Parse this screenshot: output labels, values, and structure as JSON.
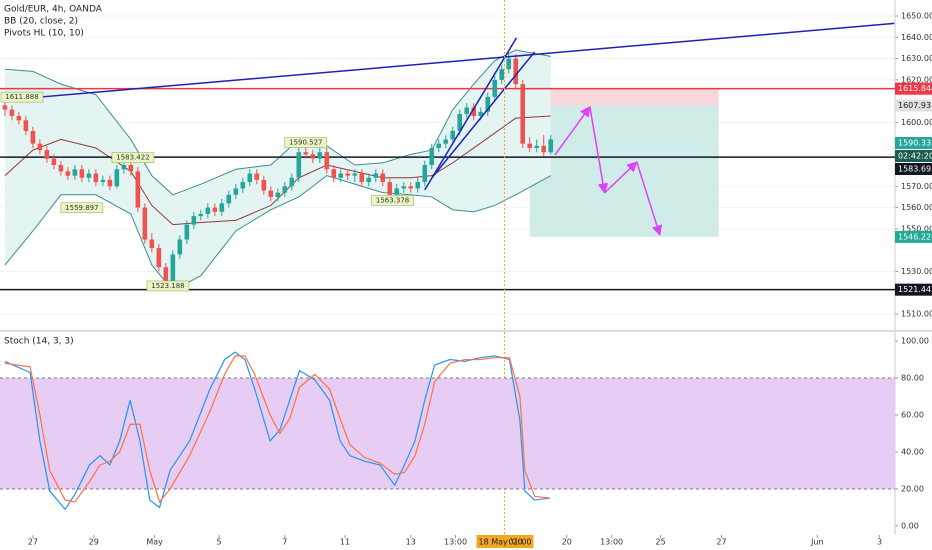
{
  "chart_data": [
    {
      "type": "candlestick",
      "title": "Gold/EUR, 4h, OANDA",
      "legend": [
        "BB (20, close, 2)",
        "Pivots HL (10, 10)"
      ],
      "up_color": "#26a69a",
      "down_color": "#ef5350",
      "candles": [
        [
          1608,
          1611,
          1603,
          1606
        ],
        [
          1606,
          1608,
          1601,
          1603
        ],
        [
          1603,
          1605,
          1599,
          1601
        ],
        [
          1601,
          1603,
          1594,
          1596
        ],
        [
          1596,
          1598,
          1588,
          1590
        ],
        [
          1590,
          1592,
          1585,
          1587
        ],
        [
          1587,
          1589,
          1581,
          1583
        ],
        [
          1583,
          1585,
          1578,
          1580
        ],
        [
          1580,
          1582,
          1575,
          1577
        ],
        [
          1577,
          1579,
          1573,
          1575
        ],
        [
          1575,
          1580,
          1573,
          1578
        ],
        [
          1578,
          1580,
          1572,
          1574
        ],
        [
          1574,
          1578,
          1572,
          1576
        ],
        [
          1576,
          1578,
          1570,
          1572
        ],
        [
          1572,
          1575,
          1570,
          1573
        ],
        [
          1573,
          1575,
          1568,
          1570
        ],
        [
          1570,
          1580,
          1569,
          1578
        ],
        [
          1578,
          1583,
          1576,
          1580
        ],
        [
          1580,
          1582,
          1575,
          1577
        ],
        [
          1577,
          1579,
          1558,
          1560
        ],
        [
          1560,
          1562,
          1543,
          1545
        ],
        [
          1545,
          1548,
          1539,
          1541
        ],
        [
          1541,
          1543,
          1530,
          1532
        ],
        [
          1532,
          1534,
          1523,
          1525
        ],
        [
          1525,
          1540,
          1524,
          1538
        ],
        [
          1538,
          1547,
          1536,
          1545
        ],
        [
          1545,
          1554,
          1543,
          1552
        ],
        [
          1552,
          1558,
          1550,
          1556
        ],
        [
          1556,
          1559,
          1554,
          1557
        ],
        [
          1557,
          1562,
          1555,
          1560
        ],
        [
          1560,
          1562,
          1556,
          1558
        ],
        [
          1558,
          1564,
          1556,
          1562
        ],
        [
          1562,
          1568,
          1560,
          1566
        ],
        [
          1566,
          1571,
          1564,
          1569
        ],
        [
          1569,
          1574,
          1567,
          1572
        ],
        [
          1572,
          1578,
          1570,
          1576
        ],
        [
          1576,
          1578,
          1571,
          1573
        ],
        [
          1573,
          1575,
          1566,
          1568
        ],
        [
          1568,
          1570,
          1563,
          1565
        ],
        [
          1565,
          1569,
          1563,
          1567
        ],
        [
          1567,
          1572,
          1565,
          1570
        ],
        [
          1570,
          1576,
          1568,
          1574
        ],
        [
          1574,
          1590,
          1572,
          1586
        ],
        [
          1586,
          1589,
          1583,
          1585
        ],
        [
          1585,
          1587,
          1581,
          1583
        ],
        [
          1583,
          1588,
          1581,
          1586
        ],
        [
          1586,
          1588,
          1576,
          1578
        ],
        [
          1578,
          1580,
          1572,
          1574
        ],
        [
          1574,
          1578,
          1572,
          1576
        ],
        [
          1576,
          1578,
          1573,
          1575
        ],
        [
          1575,
          1578,
          1572,
          1576
        ],
        [
          1576,
          1578,
          1570,
          1572
        ],
        [
          1572,
          1576,
          1570,
          1574
        ],
        [
          1574,
          1578,
          1572,
          1576
        ],
        [
          1576,
          1578,
          1570,
          1572
        ],
        [
          1572,
          1574,
          1563,
          1566
        ],
        [
          1566,
          1571,
          1564,
          1569
        ],
        [
          1569,
          1572,
          1567,
          1570
        ],
        [
          1570,
          1572,
          1567,
          1569
        ],
        [
          1569,
          1574,
          1567,
          1572
        ],
        [
          1572,
          1582,
          1570,
          1580
        ],
        [
          1580,
          1590,
          1578,
          1588
        ],
        [
          1588,
          1592,
          1586,
          1590
        ],
        [
          1590,
          1594,
          1588,
          1592
        ],
        [
          1592,
          1598,
          1590,
          1596
        ],
        [
          1596,
          1606,
          1594,
          1604
        ],
        [
          1604,
          1609,
          1602,
          1607
        ],
        [
          1607,
          1609,
          1601,
          1603
        ],
        [
          1603,
          1607,
          1601,
          1605
        ],
        [
          1605,
          1614,
          1603,
          1612
        ],
        [
          1612,
          1622,
          1610,
          1620
        ],
        [
          1620,
          1627,
          1618,
          1625
        ],
        [
          1625,
          1633,
          1623,
          1630
        ],
        [
          1630,
          1632,
          1616,
          1618
        ],
        [
          1618,
          1620,
          1588,
          1590
        ],
        [
          1590,
          1593,
          1586,
          1588
        ],
        [
          1588,
          1592,
          1586,
          1589
        ],
        [
          1589,
          1594,
          1584,
          1586
        ],
        [
          1586,
          1594,
          1585,
          1592
        ]
      ],
      "bands": {
        "x": [
          0,
          4,
          8,
          13,
          18,
          21,
          24,
          28,
          33,
          38,
          42,
          46,
          50,
          54,
          58,
          61,
          64,
          67,
          70,
          73,
          78
        ],
        "upper": [
          1625,
          1624,
          1618,
          1613,
          1592,
          1575,
          1566,
          1571,
          1578,
          1580,
          1592,
          1589,
          1580,
          1581,
          1585,
          1587,
          1606,
          1618,
          1629,
          1634,
          1631
        ],
        "middle": [
          1575,
          1587,
          1592,
          1588,
          1577,
          1561,
          1552,
          1553,
          1554,
          1561,
          1574,
          1580,
          1577,
          1574,
          1574,
          1575,
          1581,
          1588,
          1595,
          1602,
          1603
        ],
        "lower": [
          1533,
          1549,
          1566,
          1566,
          1557,
          1533,
          1521,
          1528,
          1549,
          1559,
          1565,
          1575,
          1571,
          1567,
          1566,
          1565,
          1559,
          1558,
          1561,
          1566,
          1575
        ],
        "color": "#3d8f8c",
        "fill": "#e3f4f2",
        "mid_color": "#8e3b3b"
      },
      "pivots": [
        {
          "x": 0,
          "value": 1611.888
        },
        {
          "x": 18.3,
          "value": 1583.422
        },
        {
          "x": 11,
          "value": 1559.897
        },
        {
          "x": 23.3,
          "value": 1523.188
        },
        {
          "x": 43,
          "value": 1590.527
        },
        {
          "x": 55.4,
          "value": 1563.378
        }
      ],
      "trendlines": [
        {
          "x": [
            0,
            127.1
          ],
          "y": [
            1610.5,
            1646.5
          ],
          "color": "#1f1fb8"
        },
        {
          "x": [
            60,
            73.1
          ],
          "y": [
            1568.3,
            1639.7
          ],
          "color": "#1f1fb8"
        },
        {
          "x": [
            61,
            75.7
          ],
          "y": [
            1573.9,
            1633.1
          ],
          "color": "#1f1fb8"
        }
      ],
      "price_labels": [
        {
          "value": 1615.844,
          "color": "#f23645",
          "line": true
        },
        {
          "value": 1607.931,
          "color": "#e0e0e0"
        },
        {
          "value": 1590.338,
          "color": "#26a69a",
          "countdown": "02:42:20"
        },
        {
          "value": 1583.693,
          "color": "#131722",
          "line": true
        },
        {
          "value": 1546.22,
          "label": "1546.220",
          "color": "#22ab94"
        },
        {
          "value": 1521.442,
          "color": "#131722",
          "line": true
        }
      ],
      "position": {
        "x": [
          75,
          102
        ],
        "stop": 1615.844,
        "entry": 1607.931,
        "target": 1546.22,
        "stop_color": "#f8d7da",
        "target_color": "#cfece8"
      },
      "forecast": {
        "x": [
          78.6,
          83.6,
          85.7,
          90.3,
          93.6
        ],
        "y": [
          1584.7,
          1607.3,
          1566.9,
          1581.4,
          1547.1
        ],
        "color": "#e040fb"
      },
      "crosshair": {
        "x": 71.4,
        "label": "18 May '20",
        "time": "01:00",
        "color": "#f5a623"
      },
      "xlim": [
        -0.7,
        127.2
      ],
      "ylim": [
        1502.5,
        1657.5
      ],
      "grid": true,
      "yticks": [
        {
          "value": 1510,
          "label": "1510.000"
        },
        {
          "value": 1530,
          "label": "1530.000"
        },
        {
          "value": 1550,
          "label": "1550.000"
        },
        {
          "value": 1560,
          "label": "1560.000"
        },
        {
          "value": 1570,
          "label": "1570.000"
        },
        {
          "value": 1600,
          "label": "1600.000"
        },
        {
          "value": 1620,
          "label": "1620.000"
        },
        {
          "value": 1630,
          "label": "1630.000"
        },
        {
          "value": 1640,
          "label": "1640.000"
        },
        {
          "value": 1650,
          "label": "1650.000"
        }
      ],
      "xticks": [
        {
          "value": 4,
          "label": "27"
        },
        {
          "value": 12.7,
          "label": "29"
        },
        {
          "value": 21.4,
          "label": "May"
        },
        {
          "value": 30.6,
          "label": "5"
        },
        {
          "value": 40,
          "label": "7"
        },
        {
          "value": 48.6,
          "label": "11"
        },
        {
          "value": 58,
          "label": "13"
        },
        {
          "value": 64.4,
          "label": "13:00"
        },
        {
          "value": 80.3,
          "label": "20"
        },
        {
          "value": 86.7,
          "label": "13:00"
        },
        {
          "value": 93.7,
          "label": "25"
        },
        {
          "value": 102.4,
          "label": "27"
        },
        {
          "value": 116.1,
          "label": "Jun"
        },
        {
          "value": 125,
          "label": "3"
        }
      ]
    },
    {
      "type": "line",
      "title": "Stoch (14, 3, 3)",
      "x": [
        0,
        3.6,
        5,
        6.4,
        8.6,
        10,
        12.1,
        13.6,
        15,
        16.4,
        17.9,
        19.3,
        20.7,
        22.1,
        23.6,
        26.4,
        29.3,
        31.4,
        32.9,
        34.3,
        35.7,
        37.9,
        39.3,
        40.7,
        42.1,
        44.3,
        46.4,
        47.9,
        49.3,
        51.4,
        53.6,
        55.7,
        57.1,
        58.6,
        60,
        61.4,
        63.6,
        65.7,
        67.9,
        70,
        72.1,
        73.6,
        74.3,
        75.7,
        77.9
      ],
      "series": [
        {
          "color": "#2196f3",
          "values": [
            89,
            83,
            46,
            19,
            9,
            17,
            33,
            38,
            33,
            46,
            68,
            46,
            14,
            10,
            30,
            46,
            74,
            90,
            94,
            90,
            74,
            46,
            52,
            68,
            84,
            79,
            68,
            46,
            38,
            35,
            33,
            22,
            33,
            46,
            68,
            87,
            90,
            89,
            91,
            92,
            90,
            57,
            19,
            14,
            15
          ]
        },
        {
          "color": "#ff7043",
          "values": [
            88,
            86,
            60,
            30,
            14,
            13,
            24,
            33,
            35,
            40,
            55,
            55,
            30,
            13,
            20,
            38,
            62,
            82,
            92,
            92,
            82,
            60,
            50,
            58,
            75,
            82,
            74,
            58,
            44,
            37,
            34,
            28,
            29,
            38,
            55,
            78,
            88,
            90,
            90,
            91,
            91,
            70,
            30,
            16,
            15
          ]
        }
      ],
      "band": [
        20,
        80
      ],
      "band_color": "#e7ccf4",
      "xlim": [
        -0.7,
        127.2
      ],
      "ylim": [
        -4.9,
        104.9
      ],
      "yticks": [
        {
          "value": 0,
          "label": "0.00"
        },
        {
          "value": 20,
          "label": "20.00"
        },
        {
          "value": 40,
          "label": "40.00"
        },
        {
          "value": 60,
          "label": "60.00"
        },
        {
          "value": 80,
          "label": "80.00"
        },
        {
          "value": 100,
          "label": "100.00"
        }
      ]
    }
  ]
}
